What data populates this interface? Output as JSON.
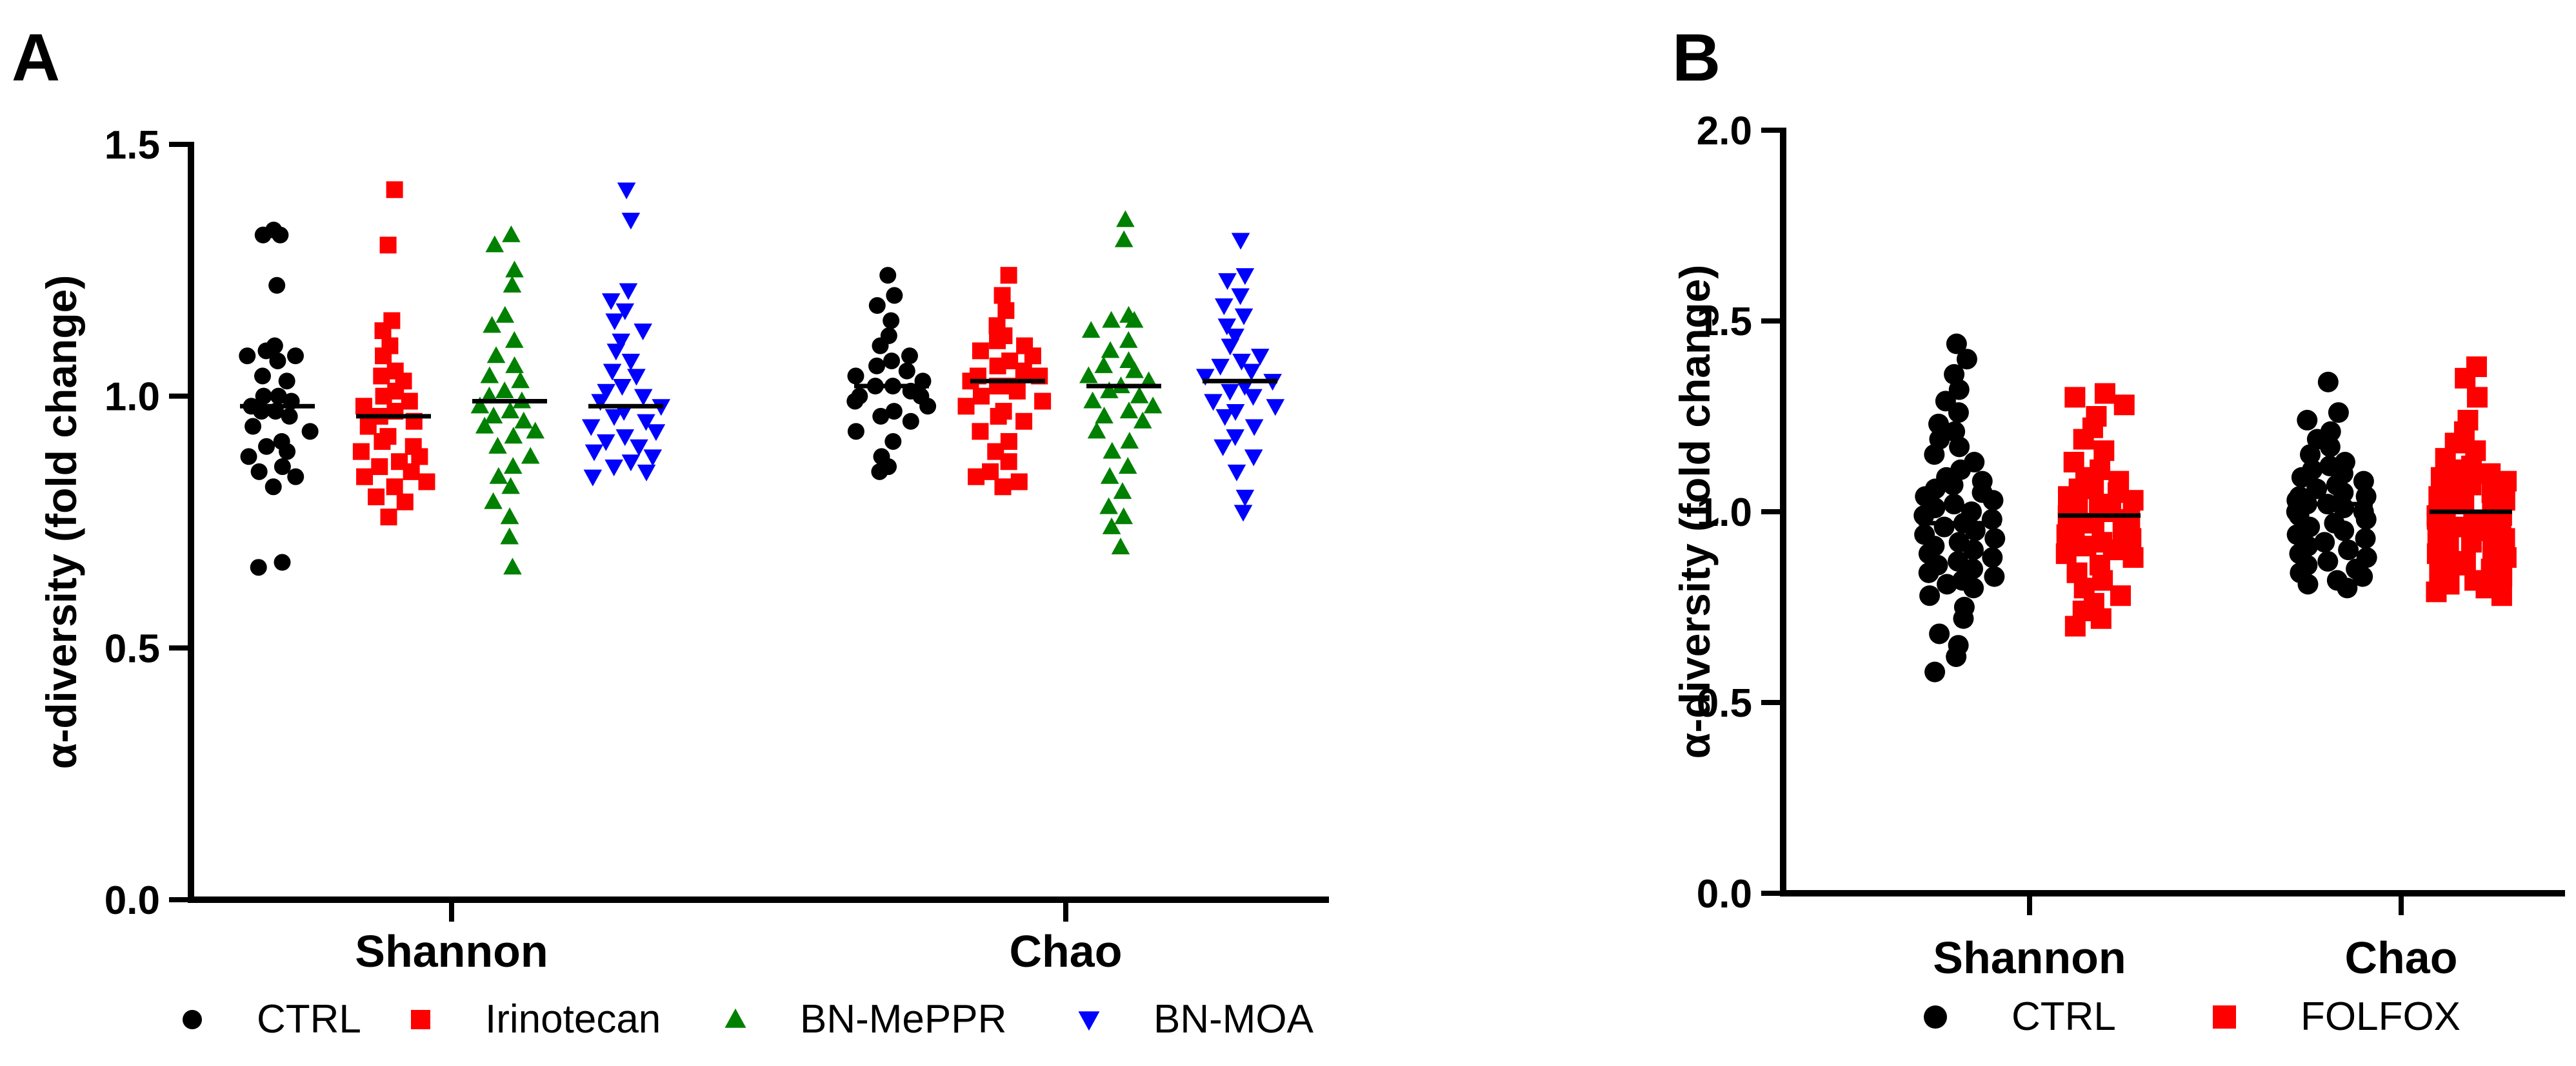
{
  "colors": {
    "CTRL": "#000000",
    "Irinotecan": "#ff0000",
    "BN-MePPR": "#008000",
    "BN-MOA": "#0000ff",
    "FOLFOX": "#ff0000",
    "axis": "#000000"
  },
  "chart_data": [
    {
      "panel": "A",
      "type": "scatter",
      "ylabel": "α-diversity (fold change)",
      "ylim": [
        0,
        1.5
      ],
      "yticks": [
        0.0,
        0.5,
        1.0,
        1.5
      ],
      "ytick_labels": [
        "0.0",
        "0.5",
        "1.0",
        "1.5"
      ],
      "categories": [
        "Shannon",
        "Chao"
      ],
      "legend_position": "bottom",
      "series": [
        {
          "name": "CTRL",
          "marker": "circle",
          "values": {
            "Shannon": [
              1.33,
              1.32,
              1.32,
              1.22,
              1.1,
              1.09,
              1.08,
              1.08,
              1.07,
              1.04,
              1.03,
              1.0,
              1.0,
              0.99,
              0.98,
              0.97,
              0.97,
              0.96,
              0.94,
              0.93,
              0.91,
              0.9,
              0.89,
              0.88,
              0.86,
              0.85,
              0.84,
              0.82,
              0.67,
              0.66
            ],
            "Chao": [
              1.24,
              1.2,
              1.18,
              1.15,
              1.12,
              1.1,
              1.08,
              1.07,
              1.06,
              1.05,
              1.04,
              1.03,
              1.02,
              1.02,
              1.01,
              1.0,
              1.0,
              0.99,
              0.98,
              0.97,
              0.96,
              0.95,
              0.93,
              0.91,
              0.88,
              0.86,
              0.85
            ]
          },
          "mean": {
            "Shannon": 0.98,
            "Chao": 1.02
          }
        },
        {
          "name": "Irinotecan",
          "marker": "square",
          "values": {
            "Shannon": [
              1.41,
              1.3,
              1.15,
              1.13,
              1.1,
              1.08,
              1.05,
              1.04,
              1.03,
              1.01,
              1.0,
              0.99,
              0.98,
              0.97,
              0.96,
              0.95,
              0.94,
              0.92,
              0.91,
              0.9,
              0.89,
              0.88,
              0.87,
              0.86,
              0.85,
              0.84,
              0.83,
              0.82,
              0.8,
              0.79,
              0.76
            ],
            "Chao": [
              1.24,
              1.2,
              1.17,
              1.14,
              1.12,
              1.11,
              1.1,
              1.09,
              1.08,
              1.07,
              1.06,
              1.05,
              1.04,
              1.04,
              1.03,
              1.02,
              1.02,
              1.01,
              1.0,
              0.99,
              0.98,
              0.97,
              0.96,
              0.95,
              0.93,
              0.91,
              0.89,
              0.87,
              0.85,
              0.83,
              0.82,
              0.84
            ]
          },
          "mean": {
            "Shannon": 0.96,
            "Chao": 1.03
          }
        },
        {
          "name": "BN-MePPR",
          "marker": "triangle-up",
          "values": {
            "Shannon": [
              1.32,
              1.3,
              1.25,
              1.22,
              1.16,
              1.14,
              1.11,
              1.08,
              1.06,
              1.04,
              1.03,
              1.01,
              1.0,
              0.99,
              0.98,
              0.97,
              0.96,
              0.95,
              0.94,
              0.93,
              0.92,
              0.9,
              0.88,
              0.86,
              0.84,
              0.82,
              0.79,
              0.76,
              0.72,
              0.66
            ],
            "Chao": [
              1.35,
              1.31,
              1.16,
              1.15,
              1.15,
              1.13,
              1.11,
              1.09,
              1.07,
              1.06,
              1.05,
              1.04,
              1.03,
              1.02,
              1.01,
              1.0,
              0.99,
              0.98,
              0.97,
              0.96,
              0.95,
              0.93,
              0.91,
              0.89,
              0.86,
              0.84,
              0.81,
              0.78,
              0.76,
              0.74,
              0.7
            ]
          },
          "mean": {
            "Shannon": 0.99,
            "Chao": 1.02
          }
        },
        {
          "name": "BN-MOA",
          "marker": "triangle-down",
          "values": {
            "Shannon": [
              1.41,
              1.35,
              1.21,
              1.19,
              1.17,
              1.15,
              1.13,
              1.11,
              1.09,
              1.07,
              1.05,
              1.04,
              1.02,
              1.01,
              1.0,
              0.99,
              0.98,
              0.97,
              0.96,
              0.95,
              0.94,
              0.93,
              0.92,
              0.91,
              0.9,
              0.89,
              0.88,
              0.87,
              0.86,
              0.85,
              0.84
            ],
            "Chao": [
              1.31,
              1.24,
              1.23,
              1.2,
              1.18,
              1.16,
              1.14,
              1.12,
              1.1,
              1.08,
              1.07,
              1.06,
              1.05,
              1.04,
              1.03,
              1.02,
              1.01,
              1.0,
              0.99,
              0.98,
              0.97,
              0.96,
              0.94,
              0.92,
              0.9,
              0.88,
              0.85,
              0.8,
              0.77
            ]
          },
          "mean": {
            "Shannon": 0.98,
            "Chao": 1.03
          }
        }
      ]
    },
    {
      "panel": "B",
      "type": "scatter",
      "ylabel": "α-diversity (fold change)",
      "ylim": [
        0,
        2.0
      ],
      "yticks": [
        0.0,
        0.5,
        1.0,
        1.5,
        2.0
      ],
      "ytick_labels": [
        "0.0",
        "0.5",
        "1.0",
        "1.5",
        "2.0"
      ],
      "categories": [
        "Shannon",
        "Chao"
      ],
      "legend_position": "bottom",
      "series": [
        {
          "name": "CTRL",
          "marker": "circle",
          "values": {
            "Shannon": [
              1.44,
              1.4,
              1.36,
              1.32,
              1.29,
              1.26,
              1.23,
              1.21,
              1.19,
              1.17,
              1.15,
              1.13,
              1.11,
              1.09,
              1.08,
              1.07,
              1.06,
              1.05,
              1.04,
              1.03,
              1.02,
              1.01,
              1.0,
              0.99,
              0.98,
              0.97,
              0.96,
              0.95,
              0.94,
              0.93,
              0.92,
              0.91,
              0.9,
              0.89,
              0.88,
              0.87,
              0.86,
              0.85,
              0.84,
              0.83,
              0.82,
              0.81,
              0.8,
              0.78,
              0.75,
              0.72,
              0.68,
              0.65,
              0.62,
              0.58
            ],
            "Chao": [
              1.34,
              1.26,
              1.24,
              1.21,
              1.19,
              1.17,
              1.15,
              1.13,
              1.12,
              1.11,
              1.1,
              1.09,
              1.08,
              1.07,
              1.06,
              1.05,
              1.04,
              1.04,
              1.03,
              1.02,
              1.02,
              1.01,
              1.0,
              1.0,
              0.99,
              0.98,
              0.97,
              0.96,
              0.95,
              0.94,
              0.93,
              0.92,
              0.91,
              0.9,
              0.89,
              0.88,
              0.87,
              0.86,
              0.85,
              0.84,
              0.83,
              0.82,
              0.81,
              0.8
            ]
          },
          "mean": {
            "Shannon": 0.97,
            "Chao": 1.02
          }
        },
        {
          "name": "FOLFOX",
          "marker": "square",
          "values": {
            "Shannon": [
              1.31,
              1.3,
              1.28,
              1.25,
              1.22,
              1.19,
              1.16,
              1.13,
              1.11,
              1.09,
              1.08,
              1.07,
              1.06,
              1.05,
              1.04,
              1.03,
              1.02,
              1.01,
              1.0,
              0.99,
              0.98,
              0.97,
              0.96,
              0.95,
              0.94,
              0.93,
              0.92,
              0.91,
              0.9,
              0.89,
              0.88,
              0.86,
              0.84,
              0.82,
              0.8,
              0.78,
              0.76,
              0.74,
              0.72,
              0.7
            ],
            "Chao": [
              1.38,
              1.35,
              1.3,
              1.24,
              1.21,
              1.18,
              1.16,
              1.14,
              1.12,
              1.11,
              1.1,
              1.09,
              1.08,
              1.07,
              1.06,
              1.05,
              1.04,
              1.03,
              1.02,
              1.01,
              1.0,
              1.0,
              0.99,
              0.99,
              0.98,
              0.98,
              0.97,
              0.96,
              0.95,
              0.94,
              0.93,
              0.92,
              0.91,
              0.9,
              0.89,
              0.88,
              0.87,
              0.86,
              0.85,
              0.84,
              0.83,
              0.82,
              0.81,
              0.8,
              0.79,
              0.78
            ]
          },
          "mean": {
            "Shannon": 0.99,
            "Chao": 1.0
          }
        }
      ]
    }
  ]
}
